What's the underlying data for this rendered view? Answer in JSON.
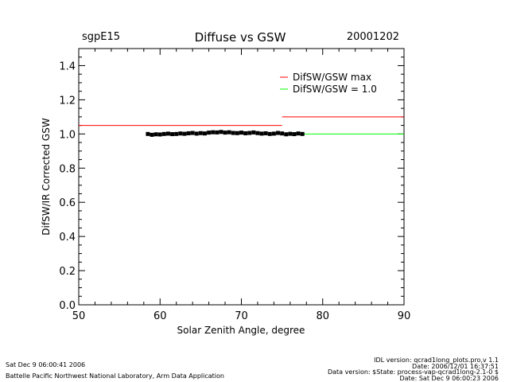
{
  "header": {
    "site": "sgpE15",
    "title": "Diffuse vs GSW",
    "date": "20001202"
  },
  "chart_data": {
    "type": "scatter",
    "title": "Diffuse vs GSW",
    "xlabel": "Solar Zenith Angle, degree",
    "ylabel": "DifSW/IR Corrected GSW",
    "xlim": [
      50,
      90
    ],
    "ylim": [
      0.0,
      1.5
    ],
    "x_ticks": [
      50,
      60,
      70,
      80,
      90
    ],
    "y_ticks": [
      0.0,
      0.2,
      0.4,
      0.6,
      0.8,
      1.0,
      1.2,
      1.4
    ],
    "y_tick_labels": [
      "0.0",
      "0.2",
      "0.4",
      "0.6",
      "0.8",
      "1.0",
      "1.2",
      "1.4"
    ],
    "legend": [
      {
        "name": "DifSW/GSW max",
        "color": "#ff0000"
      },
      {
        "name": "DifSW/GSW = 1.0",
        "color": "#00ff00"
      }
    ],
    "legend_position": "top-right",
    "reference_lines": [
      {
        "name": "DifSW/GSW max",
        "color": "#ff0000",
        "segments": [
          {
            "x": [
              50,
              75
            ],
            "y": 1.05
          },
          {
            "x": [
              75,
              90
            ],
            "y": 1.1
          }
        ]
      },
      {
        "name": "DifSW/GSW = 1.0",
        "color": "#00ff00",
        "segments": [
          {
            "x": [
              75,
              90
            ],
            "y": 1.0
          }
        ]
      }
    ],
    "series": [
      {
        "color": "#000000",
        "x": [
          58.5,
          59.0,
          59.5,
          60.0,
          60.5,
          61.0,
          61.5,
          62.0,
          62.5,
          63.0,
          63.5,
          64.0,
          64.5,
          65.0,
          65.5,
          66.0,
          66.5,
          67.0,
          67.5,
          68.0,
          68.5,
          69.0,
          69.5,
          70.0,
          70.5,
          71.0,
          71.5,
          72.0,
          72.5,
          73.0,
          73.5,
          74.0,
          74.5,
          75.0,
          75.5,
          76.0,
          76.5,
          77.0,
          77.5
        ],
        "y": [
          1.0,
          0.995,
          0.998,
          0.997,
          1.0,
          1.002,
          0.999,
          1.0,
          1.003,
          1.001,
          1.004,
          1.006,
          1.002,
          1.005,
          1.003,
          1.008,
          1.01,
          1.009,
          1.012,
          1.008,
          1.01,
          1.006,
          1.005,
          1.008,
          1.004,
          1.006,
          1.009,
          1.005,
          1.002,
          1.004,
          1.0,
          1.002,
          1.006,
          1.003,
          0.998,
          1.001,
          0.999,
          1.003,
          1.0
        ]
      }
    ]
  },
  "footer": {
    "left_date": "Sat Dec  9 06:00:41 2006",
    "left_org": "Battelle Pacific Northwest National Laboratory, Arm Data Application",
    "right_line1": "IDL version: qcrad1long_plots.pro,v 1.1",
    "right_line2": "Date: 2006/12/01 16:37:51",
    "right_line3": "Data version: $State: process-vap-qcrad1long-2.1-0 $",
    "right_line4": "Date: Sat Dec  9 06:00:23 2006"
  }
}
